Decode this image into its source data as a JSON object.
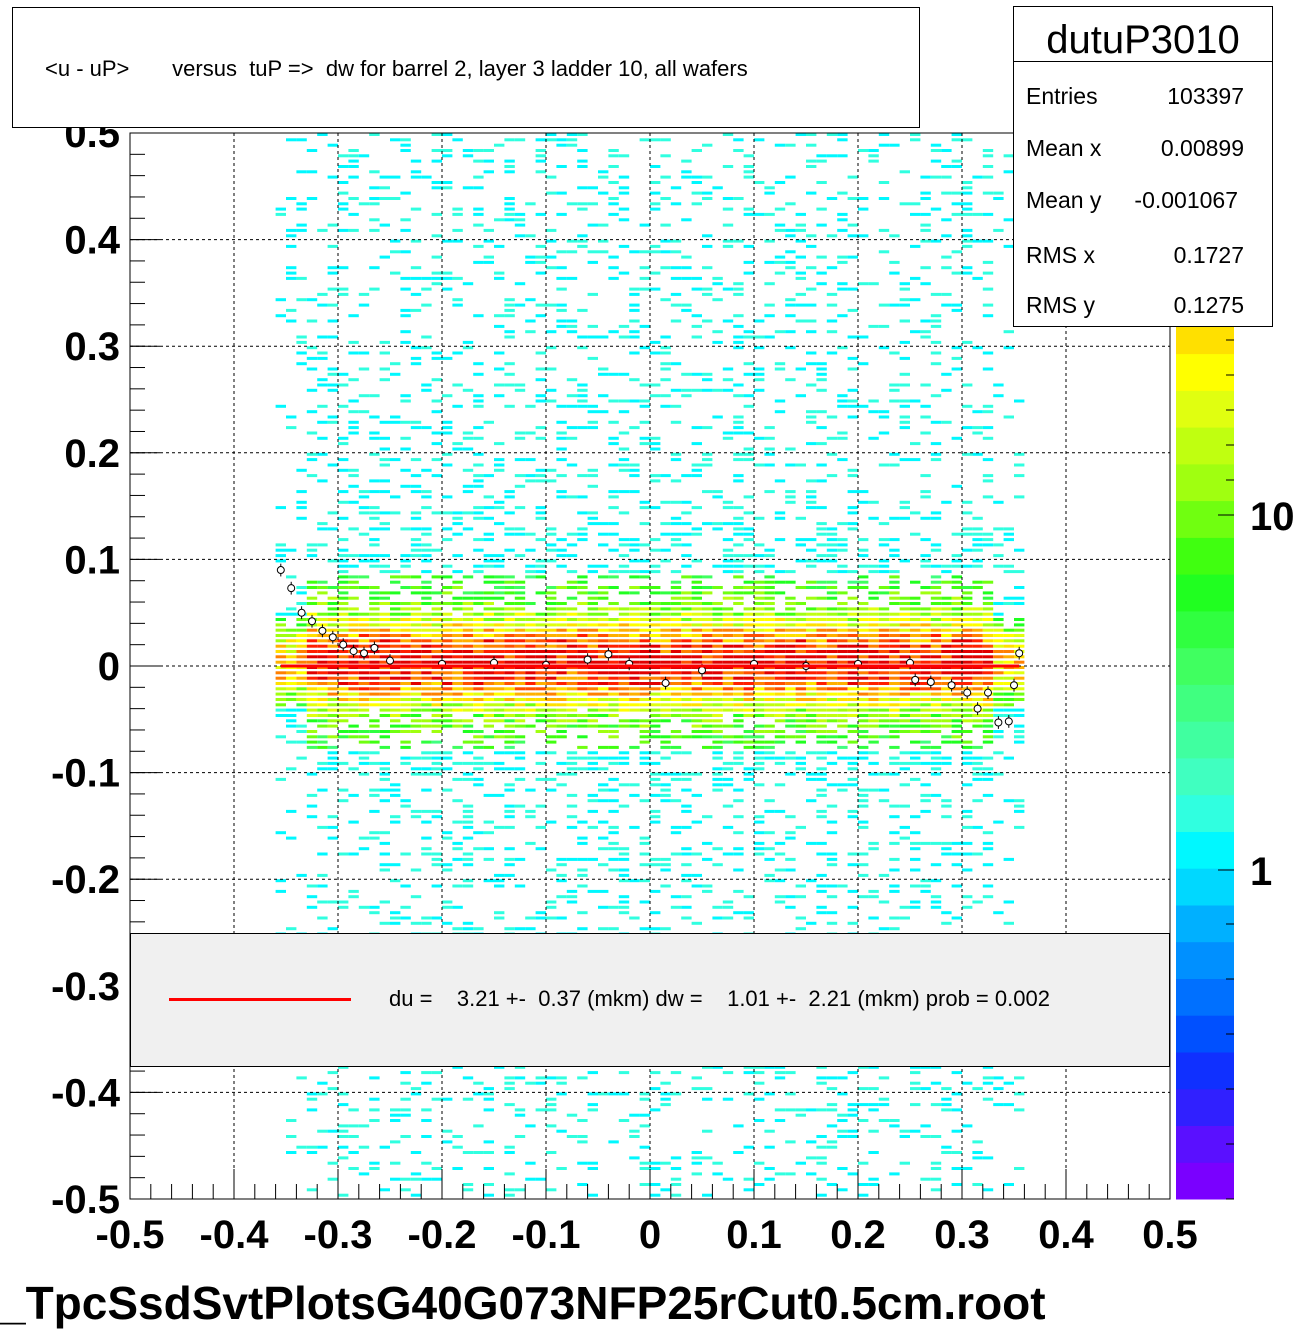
{
  "title": "<u - uP>       versus  tuP =>  dw for barrel 2, layer 3 ladder 10, all wafers",
  "stats": {
    "name": "dutuP3010",
    "rows": [
      {
        "label": "Entries",
        "value": "103397"
      },
      {
        "label": "Mean x",
        "value": "0.00899"
      },
      {
        "label": "Mean y",
        "value": "-0.001067"
      },
      {
        "label": "RMS x",
        "value": "0.1727"
      },
      {
        "label": "RMS y",
        "value": "0.1275"
      }
    ]
  },
  "legend": {
    "text": "du =    3.21 +-  0.37 (mkm) dw =    1.01 +-  2.21 (mkm) prob = 0.002",
    "color": "#ff0000"
  },
  "file_label": "_TpcSsdSvtPlotsG40G073NFP25rCut0.5cm.root",
  "chart_data": {
    "type": "heatmap",
    "xlim": [
      -0.5,
      0.5
    ],
    "ylim": [
      -0.5,
      0.5
    ],
    "x_ticks": [
      "-0.5",
      "-0.4",
      "-0.3",
      "-0.2",
      "-0.1",
      "0",
      "0.1",
      "0.2",
      "0.3",
      "0.4",
      "0.5"
    ],
    "y_ticks": [
      "-0.5",
      "-0.4",
      "-0.3",
      "-0.2",
      "-0.1",
      "0",
      "0.1",
      "0.2",
      "0.3",
      "0.4",
      "0.5"
    ],
    "grid": true,
    "log_z": true,
    "z_ticks": [
      "1",
      "10"
    ],
    "occupied_x_range": [
      -0.36,
      0.36
    ],
    "core_width_y": 0.02,
    "palette": [
      "#7a00ff",
      "#5a10ff",
      "#3020ff",
      "#1030ff",
      "#0050ff",
      "#0070ff",
      "#0090ff",
      "#00b0ff",
      "#00d8ff",
      "#00f8ff",
      "#30ffe0",
      "#40ffc0",
      "#40ffa0",
      "#40ff80",
      "#40ff60",
      "#30ff40",
      "#20ff20",
      "#40ff10",
      "#70ff10",
      "#a0ff10",
      "#c0ff10",
      "#e0ff10",
      "#ffff00",
      "#ffe000",
      "#ffb000",
      "#ff8000",
      "#ff5000",
      "#ff2000",
      "#e00000"
    ],
    "profile_points": [
      {
        "x": -0.355,
        "y": 0.09
      },
      {
        "x": -0.345,
        "y": 0.073
      },
      {
        "x": -0.335,
        "y": 0.05
      },
      {
        "x": -0.325,
        "y": 0.042
      },
      {
        "x": -0.315,
        "y": 0.033
      },
      {
        "x": -0.305,
        "y": 0.027
      },
      {
        "x": -0.295,
        "y": 0.02
      },
      {
        "x": -0.285,
        "y": 0.014
      },
      {
        "x": -0.275,
        "y": 0.012
      },
      {
        "x": -0.265,
        "y": 0.017
      },
      {
        "x": -0.25,
        "y": 0.005
      },
      {
        "x": -0.2,
        "y": 0.002
      },
      {
        "x": -0.15,
        "y": 0.003
      },
      {
        "x": -0.1,
        "y": 0.001
      },
      {
        "x": -0.06,
        "y": 0.006
      },
      {
        "x": -0.04,
        "y": 0.011
      },
      {
        "x": -0.02,
        "y": 0.002
      },
      {
        "x": 0.015,
        "y": -0.016
      },
      {
        "x": 0.05,
        "y": -0.004
      },
      {
        "x": 0.1,
        "y": 0.002
      },
      {
        "x": 0.15,
        "y": 0.0
      },
      {
        "x": 0.2,
        "y": 0.002
      },
      {
        "x": 0.25,
        "y": 0.003
      },
      {
        "x": 0.255,
        "y": -0.013
      },
      {
        "x": 0.27,
        "y": -0.015
      },
      {
        "x": 0.29,
        "y": -0.018
      },
      {
        "x": 0.305,
        "y": -0.025
      },
      {
        "x": 0.315,
        "y": -0.04
      },
      {
        "x": 0.325,
        "y": -0.025
      },
      {
        "x": 0.335,
        "y": -0.053
      },
      {
        "x": 0.345,
        "y": -0.052
      },
      {
        "x": 0.35,
        "y": -0.018
      },
      {
        "x": 0.355,
        "y": 0.012
      }
    ],
    "fit_line": {
      "x": [
        -0.355,
        0.355
      ],
      "y": [
        0.0,
        0.0
      ]
    }
  }
}
